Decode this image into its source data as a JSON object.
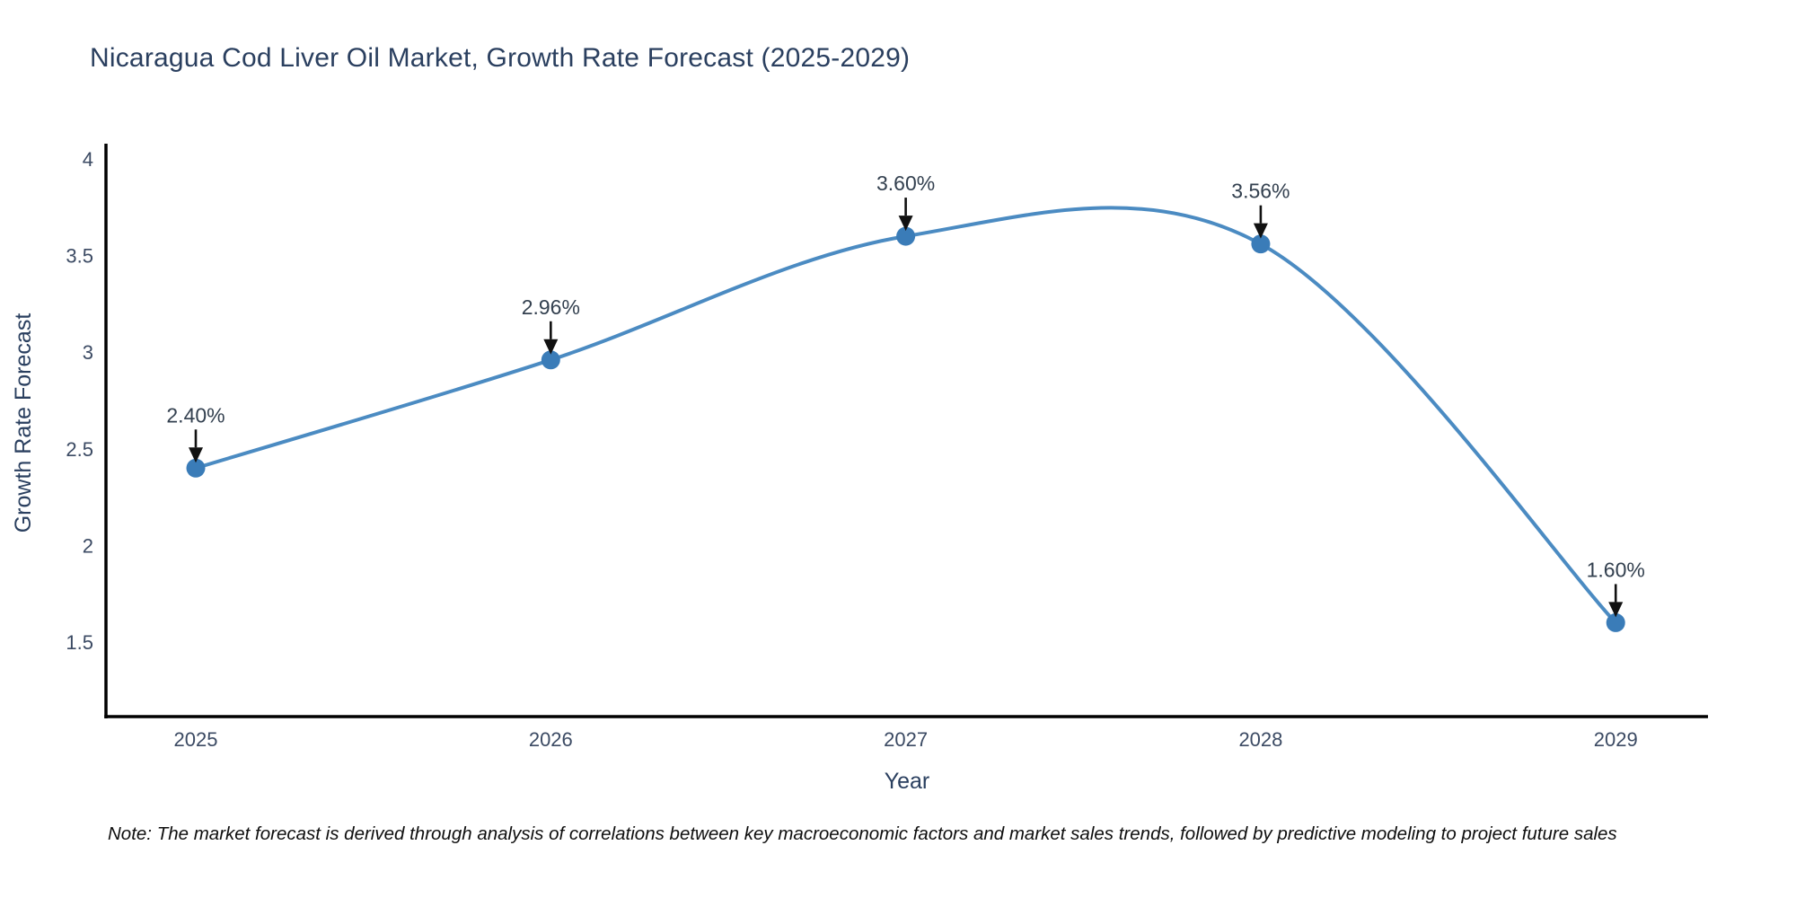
{
  "chart": {
    "title": "Nicaragua Cod Liver Oil Market, Growth Rate Forecast (2025-2029)",
    "xlabel": "Year",
    "ylabel": "Growth Rate Forecast"
  },
  "note": "Note: The market forecast is derived through analysis of correlations between key macroeconomic factors and market sales trends, followed by predictive modeling to project future sales",
  "chart_data": {
    "type": "line",
    "title": "Nicaragua Cod Liver Oil Market, Growth Rate Forecast (2025-2029)",
    "xlabel": "Year",
    "ylabel": "Growth Rate Forecast",
    "x": [
      2025,
      2026,
      2027,
      2028,
      2029
    ],
    "values": [
      2.4,
      2.96,
      3.6,
      3.56,
      1.6
    ],
    "point_labels": [
      "2.40%",
      "2.96%",
      "3.60%",
      "3.56%",
      "1.60%"
    ],
    "yticks": [
      1.5,
      2,
      2.5,
      3,
      3.5,
      4
    ],
    "xlim": [
      2024.747,
      2029.26
    ],
    "ylim": [
      1.114,
      4.079
    ],
    "line_shape": "spline",
    "grid": false,
    "legend": "none",
    "line_color": "#4b8bc2",
    "marker_color": "#3a7cb8",
    "axis_color": "#000000",
    "annotation_arrow_color": "#111111"
  }
}
